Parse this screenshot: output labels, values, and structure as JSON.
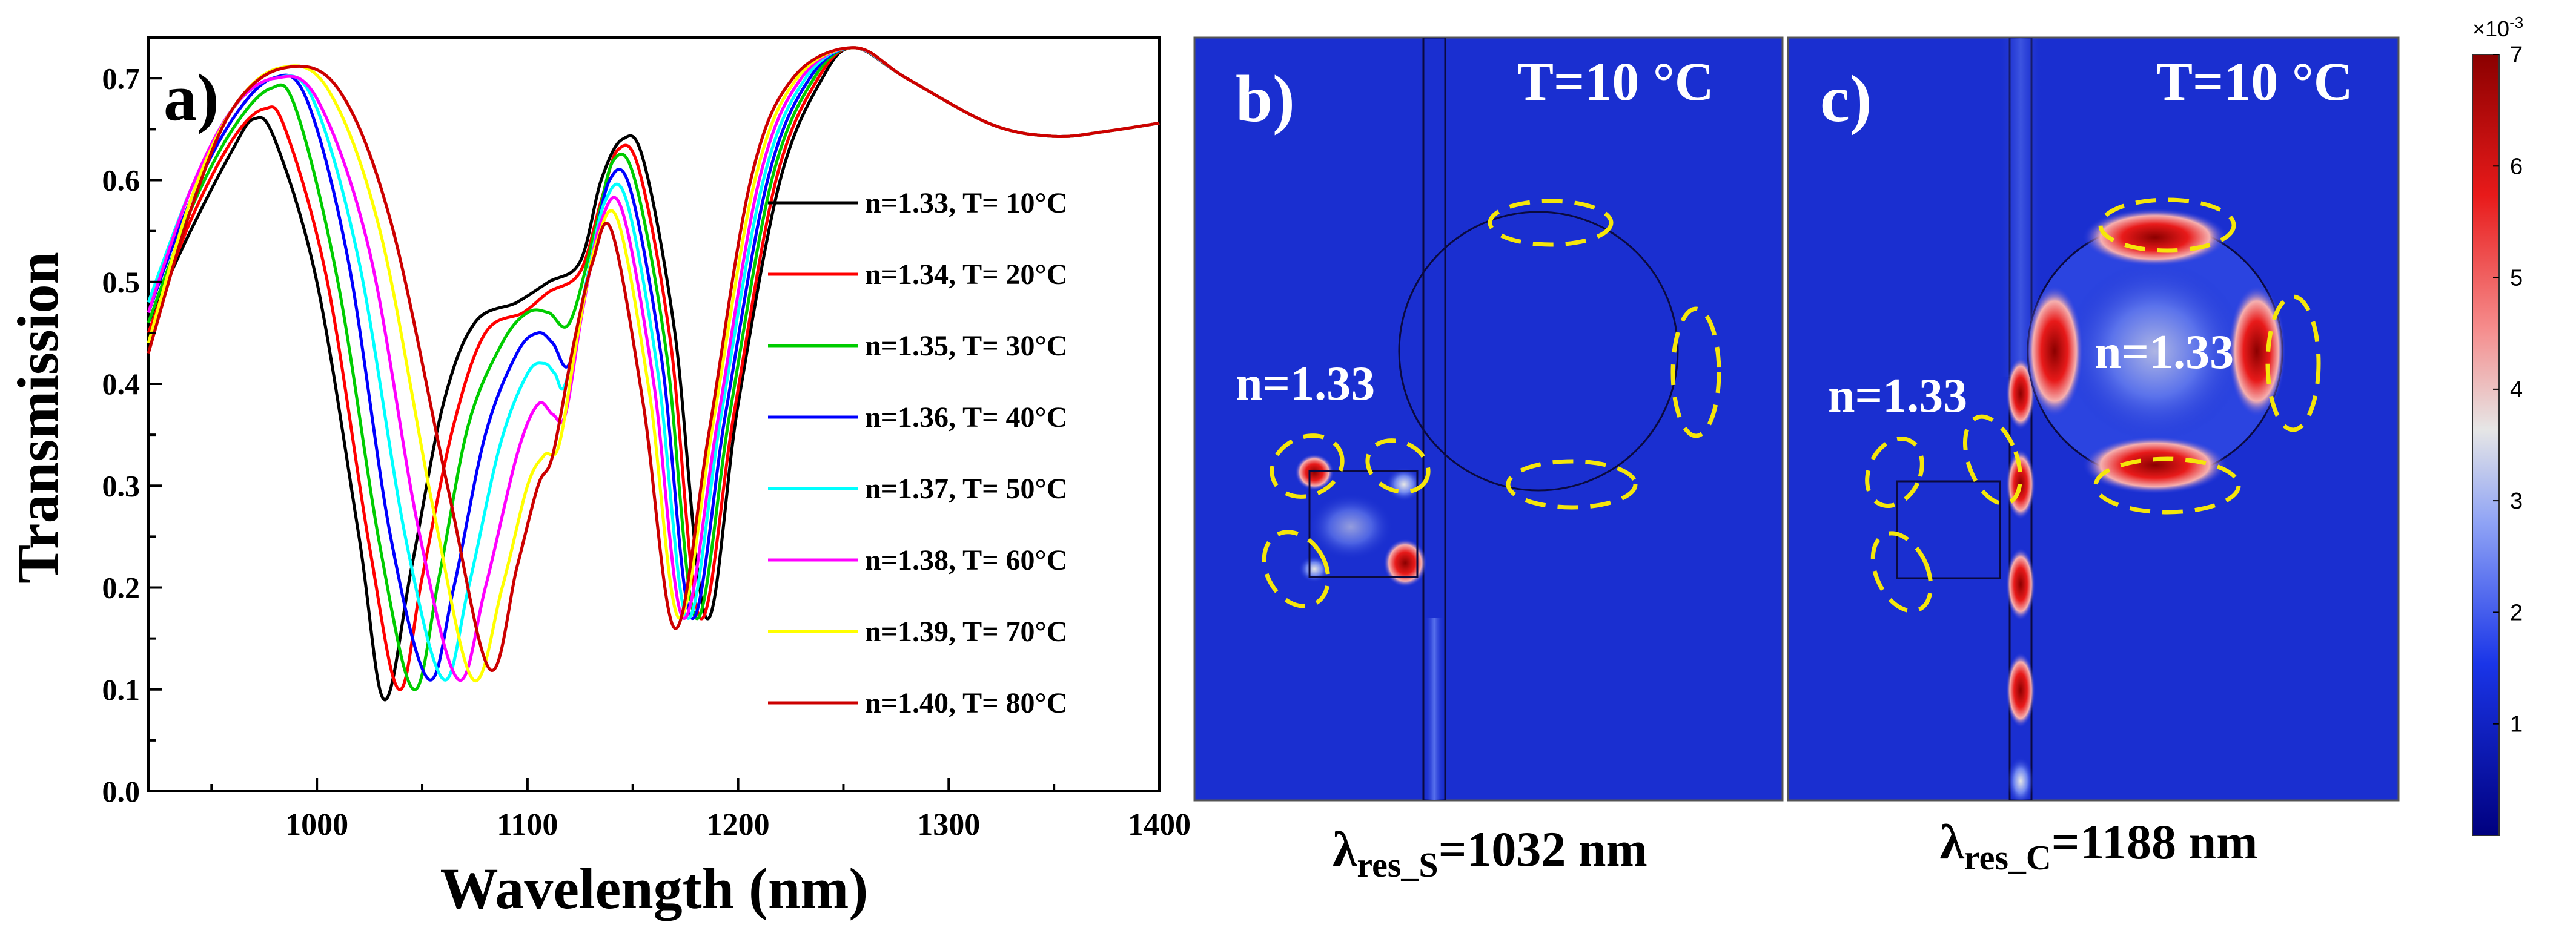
{
  "panel_a": {
    "label": "a)",
    "xlabel": "Wavelength (nm)",
    "ylabel": "Transmission",
    "x_ticks": [
      "1000",
      "1100",
      "1200",
      "1300",
      "1400"
    ],
    "y_ticks": [
      "0.0",
      "0.1",
      "0.2",
      "0.3",
      "0.4",
      "0.5",
      "0.6",
      "0.7"
    ],
    "legend": [
      "n=1.33, T= 10°C",
      "n=1.34, T= 20°C",
      "n=1.35, T= 30°C",
      "n=1.36, T= 40°C",
      "n=1.37, T= 50°C",
      "n=1.38, T= 60°C",
      "n=1.39, T= 70°C",
      "n=1.40, T= 80°C"
    ]
  },
  "panel_b": {
    "label": "b)",
    "temperature": "T=10 °C",
    "index_label": "n=1.33",
    "caption_main": "λ",
    "caption_sub": "res_S",
    "caption_rest": "=1032 nm"
  },
  "panel_c": {
    "label": "c)",
    "temperature": "T=10 °C",
    "index_label_left": "n=1.33",
    "index_label_ring": "n=1.33",
    "caption_main": "λ",
    "caption_sub": "res_C",
    "caption_rest": "=1188 nm"
  },
  "colorbar": {
    "exponent_base": "×10",
    "exponent_power": "-3",
    "ticks": [
      "1",
      "2",
      "3",
      "4",
      "5",
      "6",
      "7"
    ],
    "min": 0,
    "max": 7,
    "colors": [
      "#00007f",
      "#1a35e8",
      "#8fa3f5",
      "#e6e6e6",
      "#f58c8c",
      "#e81a1a",
      "#8b0000"
    ]
  },
  "chart_data": {
    "type": "line",
    "title": "",
    "xlabel": "Wavelength (nm)",
    "ylabel": "Transmission",
    "xlim": [
      920,
      1400
    ],
    "ylim": [
      0.0,
      0.74
    ],
    "grid": false,
    "legend_position": "center-right",
    "series": [
      {
        "name": "n=1.33, T= 10°C",
        "color": "#000000",
        "shift": 0,
        "points": [
          [
            920,
            0.46
          ],
          [
            940,
            0.55
          ],
          [
            960,
            0.63
          ],
          [
            970,
            0.66
          ],
          [
            980,
            0.64
          ],
          [
            1000,
            0.5
          ],
          [
            1020,
            0.25
          ],
          [
            1032,
            0.09
          ],
          [
            1045,
            0.22
          ],
          [
            1060,
            0.38
          ],
          [
            1075,
            0.46
          ],
          [
            1095,
            0.48
          ],
          [
            1110,
            0.5
          ],
          [
            1125,
            0.52
          ],
          [
            1135,
            0.6
          ],
          [
            1145,
            0.64
          ],
          [
            1155,
            0.62
          ],
          [
            1170,
            0.45
          ],
          [
            1185,
            0.17
          ],
          [
            1200,
            0.38
          ],
          [
            1220,
            0.6
          ],
          [
            1240,
            0.7
          ],
          [
            1255,
            0.73
          ],
          [
            1280,
            0.7
          ],
          [
            1320,
            0.655
          ],
          [
            1350,
            0.643
          ],
          [
            1375,
            0.648
          ],
          [
            1400,
            0.656
          ]
        ]
      },
      {
        "name": "n=1.34, T= 20°C",
        "color": "#ff0000",
        "shift": 7,
        "points": [
          [
            920,
            0.45
          ],
          [
            940,
            0.56
          ],
          [
            960,
            0.64
          ],
          [
            975,
            0.67
          ],
          [
            985,
            0.65
          ],
          [
            1005,
            0.5
          ],
          [
            1025,
            0.24
          ],
          [
            1039,
            0.1
          ],
          [
            1050,
            0.21
          ],
          [
            1065,
            0.36
          ],
          [
            1080,
            0.45
          ],
          [
            1098,
            0.47
          ],
          [
            1110,
            0.49
          ],
          [
            1125,
            0.51
          ],
          [
            1135,
            0.58
          ],
          [
            1143,
            0.63
          ],
          [
            1153,
            0.61
          ],
          [
            1168,
            0.44
          ],
          [
            1182,
            0.17
          ],
          [
            1198,
            0.37
          ],
          [
            1218,
            0.6
          ],
          [
            1238,
            0.7
          ],
          [
            1255,
            0.73
          ],
          [
            1280,
            0.7
          ],
          [
            1320,
            0.655
          ],
          [
            1350,
            0.643
          ],
          [
            1375,
            0.648
          ],
          [
            1400,
            0.656
          ]
        ]
      },
      {
        "name": "n=1.35, T= 30°C",
        "color": "#00cc00",
        "shift": 14,
        "points": [
          [
            920,
            0.46
          ],
          [
            940,
            0.57
          ],
          [
            960,
            0.65
          ],
          [
            978,
            0.69
          ],
          [
            990,
            0.67
          ],
          [
            1010,
            0.5
          ],
          [
            1030,
            0.24
          ],
          [
            1046,
            0.1
          ],
          [
            1058,
            0.21
          ],
          [
            1072,
            0.36
          ],
          [
            1088,
            0.44
          ],
          [
            1100,
            0.47
          ],
          [
            1110,
            0.47
          ],
          [
            1120,
            0.46
          ],
          [
            1132,
            0.55
          ],
          [
            1141,
            0.62
          ],
          [
            1151,
            0.6
          ],
          [
            1166,
            0.43
          ],
          [
            1180,
            0.17
          ],
          [
            1196,
            0.37
          ],
          [
            1216,
            0.6
          ],
          [
            1236,
            0.7
          ],
          [
            1255,
            0.73
          ],
          [
            1280,
            0.7
          ],
          [
            1320,
            0.655
          ],
          [
            1350,
            0.643
          ],
          [
            1375,
            0.648
          ],
          [
            1400,
            0.656
          ]
        ]
      },
      {
        "name": "n=1.36, T= 40°C",
        "color": "#0000ff",
        "shift": 21,
        "points": [
          [
            920,
            0.47
          ],
          [
            940,
            0.58
          ],
          [
            960,
            0.66
          ],
          [
            979,
            0.7
          ],
          [
            995,
            0.68
          ],
          [
            1015,
            0.52
          ],
          [
            1035,
            0.25
          ],
          [
            1053,
            0.11
          ],
          [
            1065,
            0.2
          ],
          [
            1080,
            0.35
          ],
          [
            1095,
            0.43
          ],
          [
            1105,
            0.45
          ],
          [
            1112,
            0.44
          ],
          [
            1120,
            0.42
          ],
          [
            1130,
            0.52
          ],
          [
            1139,
            0.6
          ],
          [
            1149,
            0.59
          ],
          [
            1164,
            0.42
          ],
          [
            1178,
            0.17
          ],
          [
            1194,
            0.37
          ],
          [
            1214,
            0.6
          ],
          [
            1234,
            0.7
          ],
          [
            1255,
            0.73
          ],
          [
            1280,
            0.7
          ],
          [
            1320,
            0.655
          ],
          [
            1350,
            0.643
          ],
          [
            1375,
            0.648
          ],
          [
            1400,
            0.656
          ]
        ]
      },
      {
        "name": "n=1.37, T= 50°C",
        "color": "#00ffff",
        "shift": 28,
        "points": [
          [
            920,
            0.48
          ],
          [
            940,
            0.59
          ],
          [
            960,
            0.67
          ],
          [
            980,
            0.7
          ],
          [
            998,
            0.68
          ],
          [
            1020,
            0.52
          ],
          [
            1042,
            0.25
          ],
          [
            1060,
            0.11
          ],
          [
            1072,
            0.2
          ],
          [
            1087,
            0.34
          ],
          [
            1100,
            0.41
          ],
          [
            1108,
            0.42
          ],
          [
            1113,
            0.41
          ],
          [
            1118,
            0.4
          ],
          [
            1128,
            0.5
          ],
          [
            1137,
            0.58
          ],
          [
            1147,
            0.58
          ],
          [
            1162,
            0.41
          ],
          [
            1176,
            0.17
          ],
          [
            1192,
            0.37
          ],
          [
            1212,
            0.6
          ],
          [
            1232,
            0.7
          ],
          [
            1255,
            0.73
          ],
          [
            1280,
            0.7
          ],
          [
            1320,
            0.655
          ],
          [
            1350,
            0.643
          ],
          [
            1375,
            0.648
          ],
          [
            1400,
            0.656
          ]
        ]
      },
      {
        "name": "n=1.38, T= 60°C",
        "color": "#ff00ff",
        "shift": 35,
        "points": [
          [
            920,
            0.47
          ],
          [
            940,
            0.59
          ],
          [
            960,
            0.67
          ],
          [
            980,
            0.7
          ],
          [
            1000,
            0.68
          ],
          [
            1025,
            0.53
          ],
          [
            1048,
            0.26
          ],
          [
            1067,
            0.11
          ],
          [
            1080,
            0.2
          ],
          [
            1095,
            0.33
          ],
          [
            1105,
            0.38
          ],
          [
            1112,
            0.37
          ],
          [
            1118,
            0.37
          ],
          [
            1126,
            0.47
          ],
          [
            1135,
            0.56
          ],
          [
            1145,
            0.57
          ],
          [
            1160,
            0.4
          ],
          [
            1174,
            0.17
          ],
          [
            1190,
            0.36
          ],
          [
            1210,
            0.6
          ],
          [
            1230,
            0.7
          ],
          [
            1255,
            0.73
          ],
          [
            1280,
            0.7
          ],
          [
            1320,
            0.655
          ],
          [
            1350,
            0.643
          ],
          [
            1375,
            0.648
          ],
          [
            1400,
            0.656
          ]
        ]
      },
      {
        "name": "n=1.39, T= 70°C",
        "color": "#ffff00",
        "shift": 42,
        "points": [
          [
            920,
            0.44
          ],
          [
            940,
            0.58
          ],
          [
            960,
            0.67
          ],
          [
            982,
            0.71
          ],
          [
            1005,
            0.69
          ],
          [
            1030,
            0.55
          ],
          [
            1055,
            0.28
          ],
          [
            1074,
            0.11
          ],
          [
            1088,
            0.2
          ],
          [
            1100,
            0.3
          ],
          [
            1108,
            0.33
          ],
          [
            1115,
            0.34
          ],
          [
            1124,
            0.45
          ],
          [
            1133,
            0.54
          ],
          [
            1143,
            0.56
          ],
          [
            1158,
            0.39
          ],
          [
            1172,
            0.17
          ],
          [
            1188,
            0.36
          ],
          [
            1208,
            0.6
          ],
          [
            1228,
            0.7
          ],
          [
            1255,
            0.73
          ],
          [
            1280,
            0.7
          ],
          [
            1320,
            0.655
          ],
          [
            1350,
            0.643
          ],
          [
            1375,
            0.648
          ],
          [
            1400,
            0.656
          ]
        ]
      },
      {
        "name": "n=1.40, T= 80°C",
        "color": "#cc0000",
        "shift": 49,
        "points": [
          [
            920,
            0.43
          ],
          [
            940,
            0.57
          ],
          [
            960,
            0.67
          ],
          [
            984,
            0.71
          ],
          [
            1010,
            0.69
          ],
          [
            1035,
            0.56
          ],
          [
            1062,
            0.3
          ],
          [
            1082,
            0.12
          ],
          [
            1095,
            0.22
          ],
          [
            1105,
            0.3
          ],
          [
            1112,
            0.33
          ],
          [
            1122,
            0.44
          ],
          [
            1131,
            0.52
          ],
          [
            1140,
            0.55
          ],
          [
            1155,
            0.38
          ],
          [
            1170,
            0.16
          ],
          [
            1186,
            0.35
          ],
          [
            1206,
            0.6
          ],
          [
            1226,
            0.7
          ],
          [
            1255,
            0.73
          ],
          [
            1280,
            0.7
          ],
          [
            1320,
            0.655
          ],
          [
            1350,
            0.643
          ],
          [
            1375,
            0.648
          ],
          [
            1400,
            0.656
          ]
        ]
      }
    ]
  }
}
